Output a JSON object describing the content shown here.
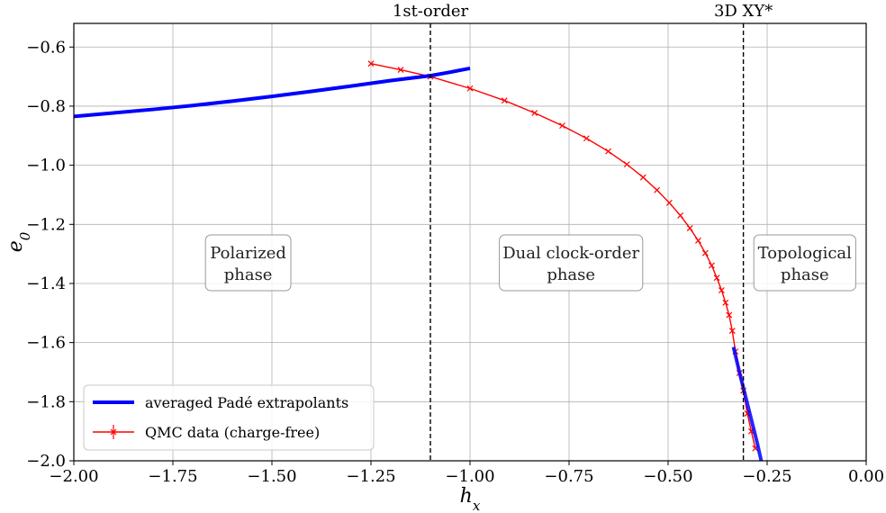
{
  "chart_data": {
    "type": "line",
    "xlabel": "h_x",
    "ylabel": "e_0",
    "xlim": [
      -2.0,
      0.0
    ],
    "ylim": [
      -2.0,
      -0.52
    ],
    "grid": true,
    "legend_placement": "lower-left",
    "x_ticks": [
      -2.0,
      -1.75,
      -1.5,
      -1.25,
      -1.0,
      -0.75,
      -0.5,
      -0.25,
      0.0
    ],
    "x_tick_labels": [
      "−2.00",
      "−1.75",
      "−1.50",
      "−1.25",
      "−1.00",
      "−0.75",
      "−0.50",
      "−0.25",
      "0.00"
    ],
    "y_ticks": [
      -2.0,
      -1.8,
      -1.6,
      -1.4,
      -1.2,
      -1.0,
      -0.8,
      -0.6
    ],
    "y_tick_labels": [
      "−2.0",
      "−1.8",
      "−1.6",
      "−1.4",
      "−1.2",
      "−1.0",
      "−0.8",
      "−0.6"
    ],
    "vlines": [
      {
        "x": -1.1,
        "label": "1st-order"
      },
      {
        "x": -0.31,
        "label": "3D XY*"
      }
    ],
    "regions": [
      {
        "x": -1.56,
        "y": -1.33,
        "lines": [
          "Polarized",
          "phase"
        ]
      },
      {
        "x": -0.745,
        "y": -1.33,
        "lines": [
          "Dual clock-order",
          "phase"
        ]
      },
      {
        "x": -0.155,
        "y": -1.33,
        "lines": [
          "Topological",
          "phase"
        ]
      }
    ],
    "series": [
      {
        "name": "averaged Padé extrapolants",
        "color": "#0000ff",
        "style": "thick-line",
        "segments": [
          {
            "x": [
              -2.0,
              -1.9,
              -1.8,
              -1.7,
              -1.6,
              -1.5,
              -1.4,
              -1.3,
              -1.2,
              -1.1,
              -1.05,
              -1.0
            ],
            "y": [
              -0.835,
              -0.823,
              -0.811,
              -0.798,
              -0.783,
              -0.767,
              -0.75,
              -0.732,
              -0.7135,
              -0.697,
              -0.685,
              -0.672
            ]
          },
          {
            "x": [
              -0.335,
              -0.32,
              -0.305,
              -0.29,
              -0.275,
              -0.265
            ],
            "y": [
              -1.615,
              -1.7,
              -1.78,
              -1.86,
              -1.94,
              -2.0
            ]
          }
        ]
      },
      {
        "name": "QMC data (charge-free)",
        "color": "#ff0000",
        "style": "line-with-x-markers",
        "x": [
          -1.25,
          -1.175,
          -1.1,
          -1.0,
          -0.913,
          -0.837,
          -0.767,
          -0.706,
          -0.651,
          -0.604,
          -0.563,
          -0.528,
          -0.497,
          -0.469,
          -0.445,
          -0.424,
          -0.406,
          -0.39,
          -0.377,
          -0.365,
          -0.355,
          -0.346,
          -0.338,
          -0.33,
          -0.32,
          -0.31,
          -0.3,
          -0.29,
          -0.28
        ],
        "y": [
          -0.656,
          -0.677,
          -0.7,
          -0.74,
          -0.781,
          -0.823,
          -0.866,
          -0.909,
          -0.953,
          -0.997,
          -1.041,
          -1.084,
          -1.127,
          -1.17,
          -1.213,
          -1.255,
          -1.297,
          -1.339,
          -1.381,
          -1.423,
          -1.465,
          -1.507,
          -1.56,
          -1.63,
          -1.703,
          -1.763,
          -1.84,
          -1.9,
          -1.958
        ]
      }
    ]
  }
}
